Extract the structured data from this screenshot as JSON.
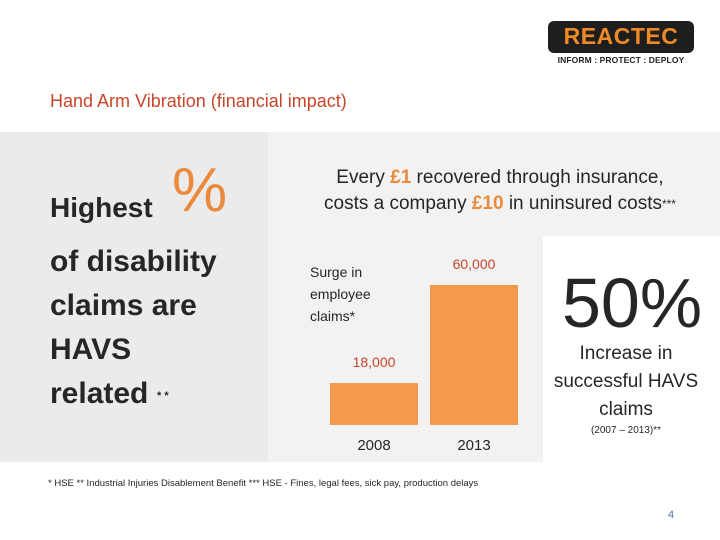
{
  "brand": {
    "name": "REACTEC",
    "tagline": "INFORM : PROTECT : DEPLOY",
    "color_primary": "#f08a24",
    "color_bg": "#1e1e1e"
  },
  "slide": {
    "title": "Hand Arm Vibration (financial impact)",
    "page_number": "4"
  },
  "left": {
    "highest": "Highest",
    "percent_symbol": "%",
    "statement": "of disability\nclaims are\nHAVS\nrelated",
    "footnote_mark": "* *"
  },
  "middle": {
    "line1_prefix": "Every ",
    "line1_amount": "£1",
    "line1_suffix": " recovered through insurance,",
    "line2_prefix": "costs a company ",
    "line2_amount": "£10",
    "line2_suffix": " in uninsured costs",
    "line2_mark": "***"
  },
  "chart_data": {
    "type": "bar",
    "title": "Surge in employee claims*",
    "categories": [
      "2008",
      "2013"
    ],
    "values": [
      18000,
      60000
    ],
    "value_labels": [
      "18,000",
      "60,000"
    ],
    "ylim": [
      0,
      60000
    ],
    "bar_color": "#f39a4c",
    "label_color": "#c8452a"
  },
  "right": {
    "big_value": "50%",
    "caption": "Increase in successful HAVS claims",
    "period": "(2007 – 2013)**"
  },
  "sources": "* HSE ** Industrial Injuries Disablement Benefit *** HSE - Fines, legal fees, sick pay, production delays",
  "colors": {
    "accent": "#e98a3c",
    "title": "#c8452a"
  }
}
